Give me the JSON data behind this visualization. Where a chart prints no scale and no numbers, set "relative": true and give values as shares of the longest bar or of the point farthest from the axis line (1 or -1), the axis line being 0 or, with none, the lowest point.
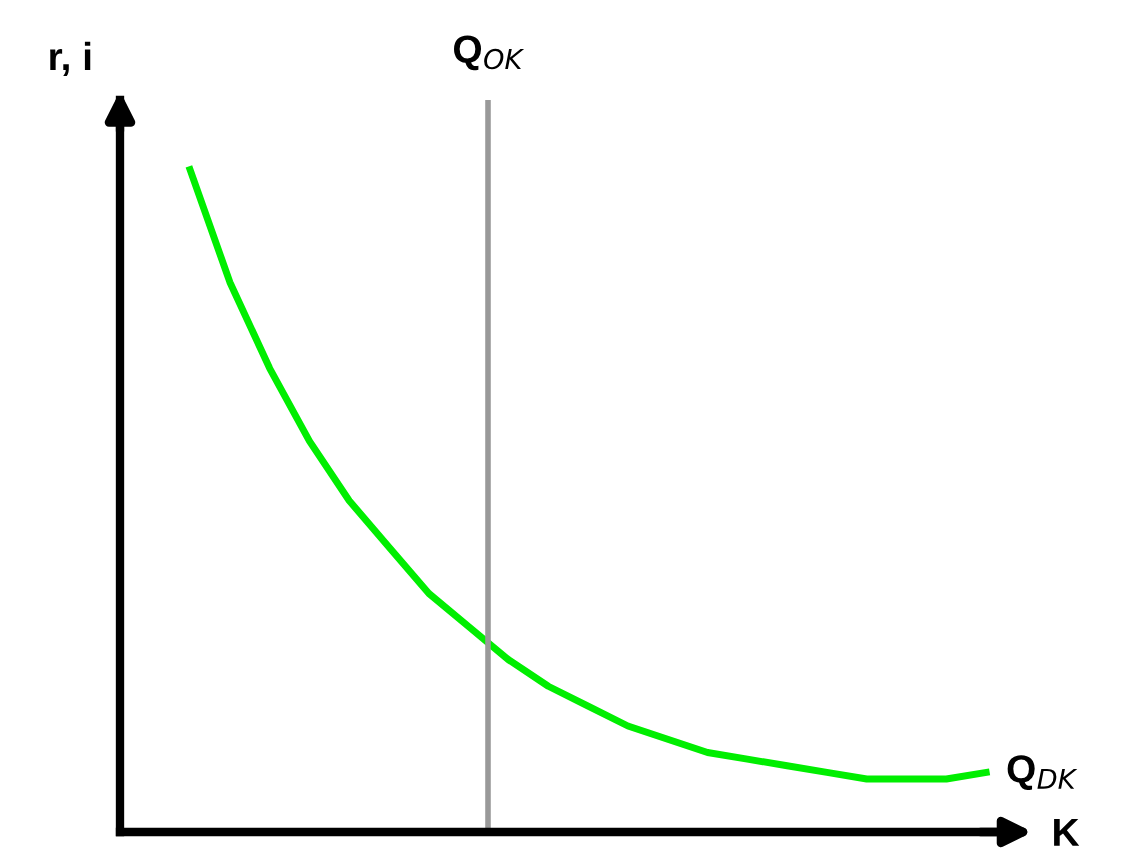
{
  "chart_data": {
    "type": "line",
    "relative": true,
    "xlabel": "K",
    "ylabel": "r, i",
    "marker": "none",
    "line_style": "solid",
    "categories": [
      null,
      null,
      null,
      null,
      null,
      null,
      null,
      null,
      null,
      null,
      null,
      null,
      null,
      null,
      null,
      null,
      null,
      null,
      null,
      null,
      null
    ],
    "series": [
      {
        "name": "Q$_{DK}$",
        "color": "#00ee00",
        "values": [
          1,
          0.83,
          0.7,
          0.59,
          0.5,
          0.43,
          0.36,
          0.31,
          0.26,
          0.22,
          0.19,
          0.16,
          0.14,
          0.12,
          0.11,
          0.1,
          0.09,
          0.08,
          0.08,
          0.08,
          0.09
        ]
      }
    ],
    "annotations": [
      "Q$_{OK}$"
    ]
  }
}
